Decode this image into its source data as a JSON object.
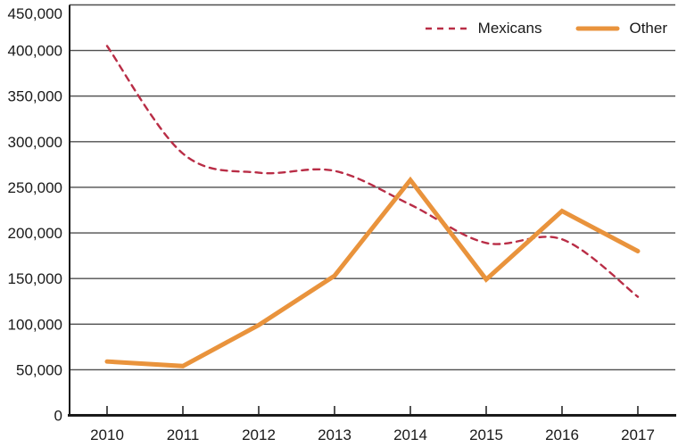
{
  "chart_data": {
    "type": "line",
    "x_categories": [
      "2010",
      "2011",
      "2012",
      "2013",
      "2014",
      "2015",
      "2016",
      "2017"
    ],
    "series": [
      {
        "name": "Mexicans",
        "color": "#b92d46",
        "line_style": "dashed",
        "smooth": true,
        "values": [
          405000,
          287000,
          266000,
          268000,
          231000,
          189000,
          193000,
          130000
        ]
      },
      {
        "name": "Other",
        "color": "#e9933c",
        "line_style": "solid",
        "smooth": false,
        "values": [
          59000,
          54000,
          99000,
          153000,
          258000,
          149000,
          224000,
          180000
        ]
      }
    ],
    "ylim": [
      0,
      450000
    ],
    "ytick_step": 50000,
    "y_tick_labels": [
      "0",
      "50,000",
      "100,000",
      "150,000",
      "200,000",
      "250,000",
      "300,000",
      "350,000",
      "400,000",
      "450,000"
    ],
    "grid": "horizontal-only",
    "legend_position": "top-right",
    "axis_color": "#1a1a1a",
    "gridline_color": "#4f4f4f",
    "text_color": "#191919",
    "background": "#ffffff"
  }
}
